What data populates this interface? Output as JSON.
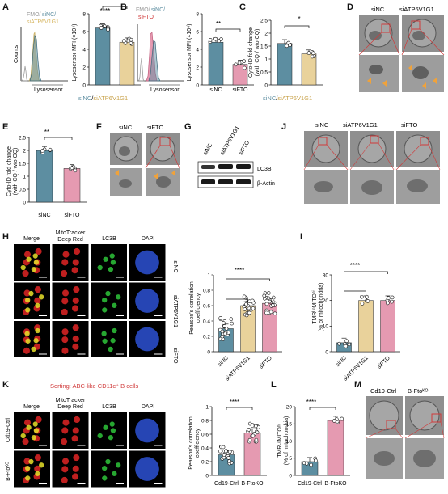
{
  "colors": {
    "teal": "#5d8ea1",
    "tan": "#e9d29b",
    "pink": "#e59ab1",
    "red": "#d03a3a",
    "em_bg": "#8d8d8d",
    "conf_bg": "#000000"
  },
  "panel_letters": [
    "A",
    "B",
    "C",
    "D",
    "E",
    "F",
    "G",
    "J",
    "H",
    "I",
    "K",
    "L",
    "M"
  ],
  "panelA": {
    "legend_fmo": "FMO/",
    "legend_sinc": "siNC/",
    "legend_si": "siATP6V1G1",
    "hist_xlabel": "Lysosensor",
    "hist_ylabel": "Counts",
    "bar_ylabel": "Lysosensor MFI (×10⁴)",
    "xlabel_a": "siNC",
    "xlabel_sep": "/",
    "xlabel_b": "siATP6V1G1",
    "sig": "****"
  },
  "panelB": {
    "legend_fmo": "FMO/",
    "legend_sinc": "siNC/",
    "legend_si": "siFTO",
    "hist_xlabel": "Lysosensor",
    "bar_ylabel": "Lysosensor MFI (×10⁴)",
    "sig": "**"
  },
  "panelC": {
    "ylabel_1": "Cyto-ID fold change",
    "ylabel_2": "(with CQ / w/o CQ)",
    "xlabel_a": "siNC",
    "xlabel_sep": "/",
    "xlabel_b": "siATP6V1G1",
    "sig": "*"
  },
  "panelD": {
    "label_1": "siNC",
    "label_2": "siATP6V1G1"
  },
  "panelE": {
    "ylabel_1": "Cyto-ID fold change",
    "ylabel_2": "(with CQ / w/o CQ)",
    "sig": "**"
  },
  "panelF": {
    "label_1": "siNC",
    "label_2": "siFTO"
  },
  "panelG": {
    "lanes": [
      "siNC",
      "siATP6V1G1",
      "siFTO"
    ],
    "band_1": "LC3B",
    "band_2": "β-Actin"
  },
  "panelJ": {
    "labels": [
      "siNC",
      "siATP6V1G1",
      "siFTO"
    ]
  },
  "panelH": {
    "cols": [
      "Merge",
      "MitoTracker",
      "Deep Red",
      "LC3B",
      "DAPI"
    ],
    "rows": [
      "siNC",
      "siATP6V1G1",
      "siFTO"
    ],
    "ylabel_1": "Pearson's correlation",
    "ylabel_2": "coefficiency",
    "sig": "****"
  },
  "panelI": {
    "ylabel_1": "TMRᴸᵒMITOʰⁱ",
    "ylabel_2": "(% of mitochondria)",
    "sig": "****"
  },
  "panelK": {
    "title": "Sorting: ABC-like CD11c⁺ B cells",
    "cols": [
      "Merge",
      "MitoTracker",
      "Deep Red",
      "LC3B",
      "DAPI"
    ],
    "rows": [
      "Cd19-Ctrl",
      "B-Ftoᴷᴼ"
    ],
    "ylabel_1": "Pearson's correlation",
    "ylabel_2": "coefficiency",
    "sig": "****"
  },
  "panelL": {
    "ylabel_1": "TMRᴸᵒMITOʰⁱ",
    "ylabel_2": "(% of mitochondria)",
    "sig": "****"
  },
  "panelM": {
    "label_1": "Cd19-Ctrl",
    "label_2": "B-Ftoᴷᴼ"
  },
  "chart_data": [
    {
      "id": "A",
      "type": "bar",
      "categories": [
        "siNC",
        "siATP6V1G1"
      ],
      "values": [
        6.4,
        4.8
      ],
      "ylim": [
        0,
        8
      ],
      "yticks": [
        0,
        2,
        4,
        6,
        8
      ]
    },
    {
      "id": "B",
      "type": "bar",
      "categories": [
        "siNC",
        "siFTO"
      ],
      "values": [
        4.8,
        2.3
      ],
      "ylim": [
        0,
        8
      ],
      "yticks": [
        0,
        2,
        4,
        6,
        8
      ]
    },
    {
      "id": "C",
      "type": "bar",
      "categories": [
        "siNC",
        "siATP6V1G1"
      ],
      "values": [
        1.6,
        1.2
      ],
      "ylim": [
        0,
        2.5
      ],
      "yticks": [
        0,
        0.5,
        1,
        1.5,
        2,
        2.5
      ]
    },
    {
      "id": "E",
      "type": "bar",
      "categories": [
        "siNC",
        "siFTO"
      ],
      "values": [
        2.0,
        1.3
      ],
      "ylim": [
        0,
        2.5
      ],
      "yticks": [
        0,
        0.5,
        1,
        1.5,
        2,
        2.5
      ]
    },
    {
      "id": "H",
      "type": "bar",
      "categories": [
        "siNC",
        "siATP6V1G1",
        "siFTO"
      ],
      "values": [
        0.3,
        0.6,
        0.63
      ],
      "ylim": [
        0,
        1.0
      ],
      "yticks": [
        0,
        0.2,
        0.4,
        0.6,
        0.8,
        1.0
      ]
    },
    {
      "id": "I",
      "type": "bar",
      "categories": [
        "siNC",
        "siATP6V1G1",
        "siFTO"
      ],
      "values": [
        3.5,
        20,
        20
      ],
      "ylim": [
        0,
        30
      ],
      "yticks": [
        0,
        10,
        20,
        30
      ]
    },
    {
      "id": "K",
      "type": "bar",
      "categories": [
        "Cd19-Ctrl",
        "B-FtoKO"
      ],
      "values": [
        0.3,
        0.62
      ],
      "ylim": [
        0,
        1.0
      ],
      "yticks": [
        0,
        0.2,
        0.4,
        0.6,
        0.8,
        1.0
      ]
    },
    {
      "id": "L",
      "type": "bar",
      "categories": [
        "Cd19-Ctrl",
        "B-FtoKO"
      ],
      "values": [
        4,
        16
      ],
      "ylim": [
        0,
        20
      ],
      "yticks": [
        0,
        5,
        10,
        15,
        20
      ]
    }
  ]
}
